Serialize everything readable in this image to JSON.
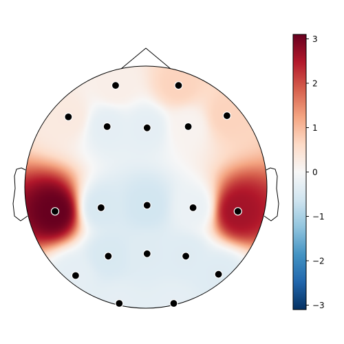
{
  "chart_data": {
    "type": "heatmap",
    "subtype": "eeg-topomap",
    "title": "",
    "colormap": "RdBu_r",
    "colorbar": {
      "vmin": -3.1,
      "vmax": 3.1,
      "ticks": [
        3,
        2,
        1,
        0,
        -1,
        -2,
        -3
      ],
      "tick_labels": [
        "3",
        "2",
        "1",
        "0",
        "−1",
        "−2",
        "−3"
      ],
      "placement": "right"
    },
    "head_coordinate_range": {
      "x": [
        -1,
        1
      ],
      "y": [
        -1,
        1
      ]
    },
    "sensors": [
      {
        "x": -0.25,
        "y": 0.84,
        "value": 0.2
      },
      {
        "x": 0.27,
        "y": 0.84,
        "value": 0.7
      },
      {
        "x": -0.64,
        "y": 0.58,
        "value": 0.3
      },
      {
        "x": -0.32,
        "y": 0.5,
        "value": -0.3
      },
      {
        "x": 0.01,
        "y": 0.49,
        "value": -0.3
      },
      {
        "x": 0.35,
        "y": 0.5,
        "value": 0.1
      },
      {
        "x": 0.67,
        "y": 0.59,
        "value": 0.7
      },
      {
        "x": -0.75,
        "y": -0.2,
        "value": 3.1
      },
      {
        "x": -0.37,
        "y": -0.17,
        "value": -0.5
      },
      {
        "x": 0.01,
        "y": -0.15,
        "value": -0.6
      },
      {
        "x": 0.39,
        "y": -0.17,
        "value": -0.2
      },
      {
        "x": 0.76,
        "y": -0.2,
        "value": 2.6
      },
      {
        "x": -0.31,
        "y": -0.57,
        "value": -0.5
      },
      {
        "x": 0.01,
        "y": -0.55,
        "value": -0.4
      },
      {
        "x": 0.33,
        "y": -0.57,
        "value": -0.4
      },
      {
        "x": -0.58,
        "y": -0.73,
        "value": -0.3
      },
      {
        "x": 0.6,
        "y": -0.72,
        "value": -0.4
      },
      {
        "x": -0.22,
        "y": -0.96,
        "value": -0.3
      },
      {
        "x": 0.23,
        "y": -0.96,
        "value": -0.3
      }
    ]
  }
}
